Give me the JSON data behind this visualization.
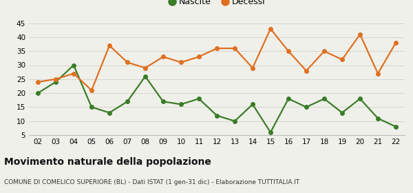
{
  "years": [
    "02",
    "03",
    "04",
    "05",
    "06",
    "07",
    "08",
    "09",
    "10",
    "11",
    "12",
    "13",
    "14",
    "15",
    "16",
    "17",
    "18",
    "19",
    "20",
    "21",
    "22"
  ],
  "nascite": [
    20,
    24,
    30,
    15,
    13,
    17,
    26,
    17,
    16,
    18,
    12,
    10,
    16,
    6,
    18,
    15,
    18,
    13,
    18,
    11,
    8
  ],
  "decessi": [
    24,
    25,
    27,
    21,
    37,
    31,
    29,
    33,
    31,
    33,
    36,
    36,
    29,
    43,
    35,
    28,
    35,
    32,
    41,
    27,
    38
  ],
  "nascite_color": "#3a7d27",
  "decessi_color": "#e07020",
  "background_color": "#f0f0eb",
  "ylim": [
    5,
    45
  ],
  "yticks": [
    5,
    10,
    15,
    20,
    25,
    30,
    35,
    40,
    45
  ],
  "title": "Movimento naturale della popolazione",
  "subtitle": "COMUNE DI COMELICO SUPERIORE (BL) - Dati ISTAT (1 gen-31 dic) - Elaborazione TUTTITALIA.IT",
  "legend_nascite": "Nascite",
  "legend_decessi": "Decessi",
  "marker_size": 4,
  "line_width": 1.6
}
